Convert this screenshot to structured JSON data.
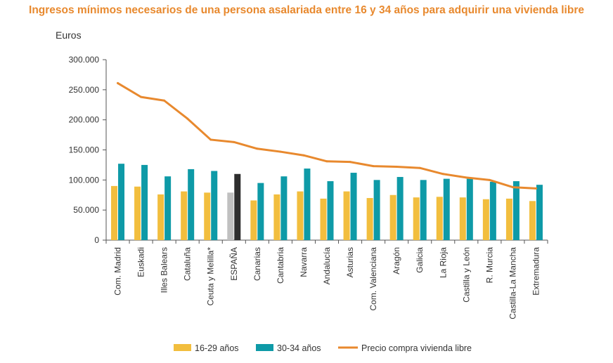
{
  "chart_data": {
    "type": "bar",
    "title": "Ingresos mínimos necesarios de una persona asalariada entre 16 y 34 años para adquirir una vivienda libre",
    "ylabel": "Euros",
    "xlabel": "",
    "ylim": [
      0,
      300000
    ],
    "yticks": [
      0,
      50000,
      100000,
      150000,
      200000,
      250000,
      300000
    ],
    "ytick_labels": [
      "0",
      "50.000",
      "100.000",
      "150.000",
      "200.000",
      "250.000",
      "300.000"
    ],
    "categories": [
      "Com. Madrid",
      "Euskadi",
      "Illes Balears",
      "Cataluña",
      "Ceuta y Melilla*",
      "ESPAÑA",
      "Canarias",
      "Cantabria",
      "Navarra",
      "Andalucía",
      "Asturias",
      "Com. Valenciana",
      "Aragón",
      "Galicia",
      "La Rioja",
      "Castilla y León",
      "R. Murcia",
      "Castilla-La Mancha",
      "Extremadura"
    ],
    "highlight_category": "ESPAÑA",
    "series": [
      {
        "name": "16-29 años",
        "kind": "bar",
        "color": "#F2BE3E",
        "highlight_color": "#C0C0C0",
        "values": [
          90000,
          89000,
          76000,
          81000,
          79000,
          79000,
          66000,
          76000,
          81000,
          69000,
          81000,
          70000,
          75000,
          71000,
          72000,
          71000,
          68000,
          69000,
          65000
        ]
      },
      {
        "name": "30-34 años",
        "kind": "bar",
        "color": "#0E9AA7",
        "highlight_color": "#2E2E2E",
        "values": [
          127000,
          125000,
          106000,
          118000,
          115000,
          110000,
          95000,
          106000,
          119000,
          98000,
          112000,
          100000,
          105000,
          100000,
          102000,
          102000,
          97000,
          98000,
          92000
        ]
      },
      {
        "name": "Precio compra vivienda libre",
        "kind": "line",
        "color": "#E8892E",
        "values": [
          261000,
          238000,
          232000,
          202000,
          167000,
          163000,
          152000,
          147000,
          141000,
          131000,
          130000,
          123000,
          122000,
          120000,
          110000,
          104000,
          100000,
          88000,
          86000
        ]
      }
    ],
    "legend_position": "bottom",
    "grid": false
  }
}
